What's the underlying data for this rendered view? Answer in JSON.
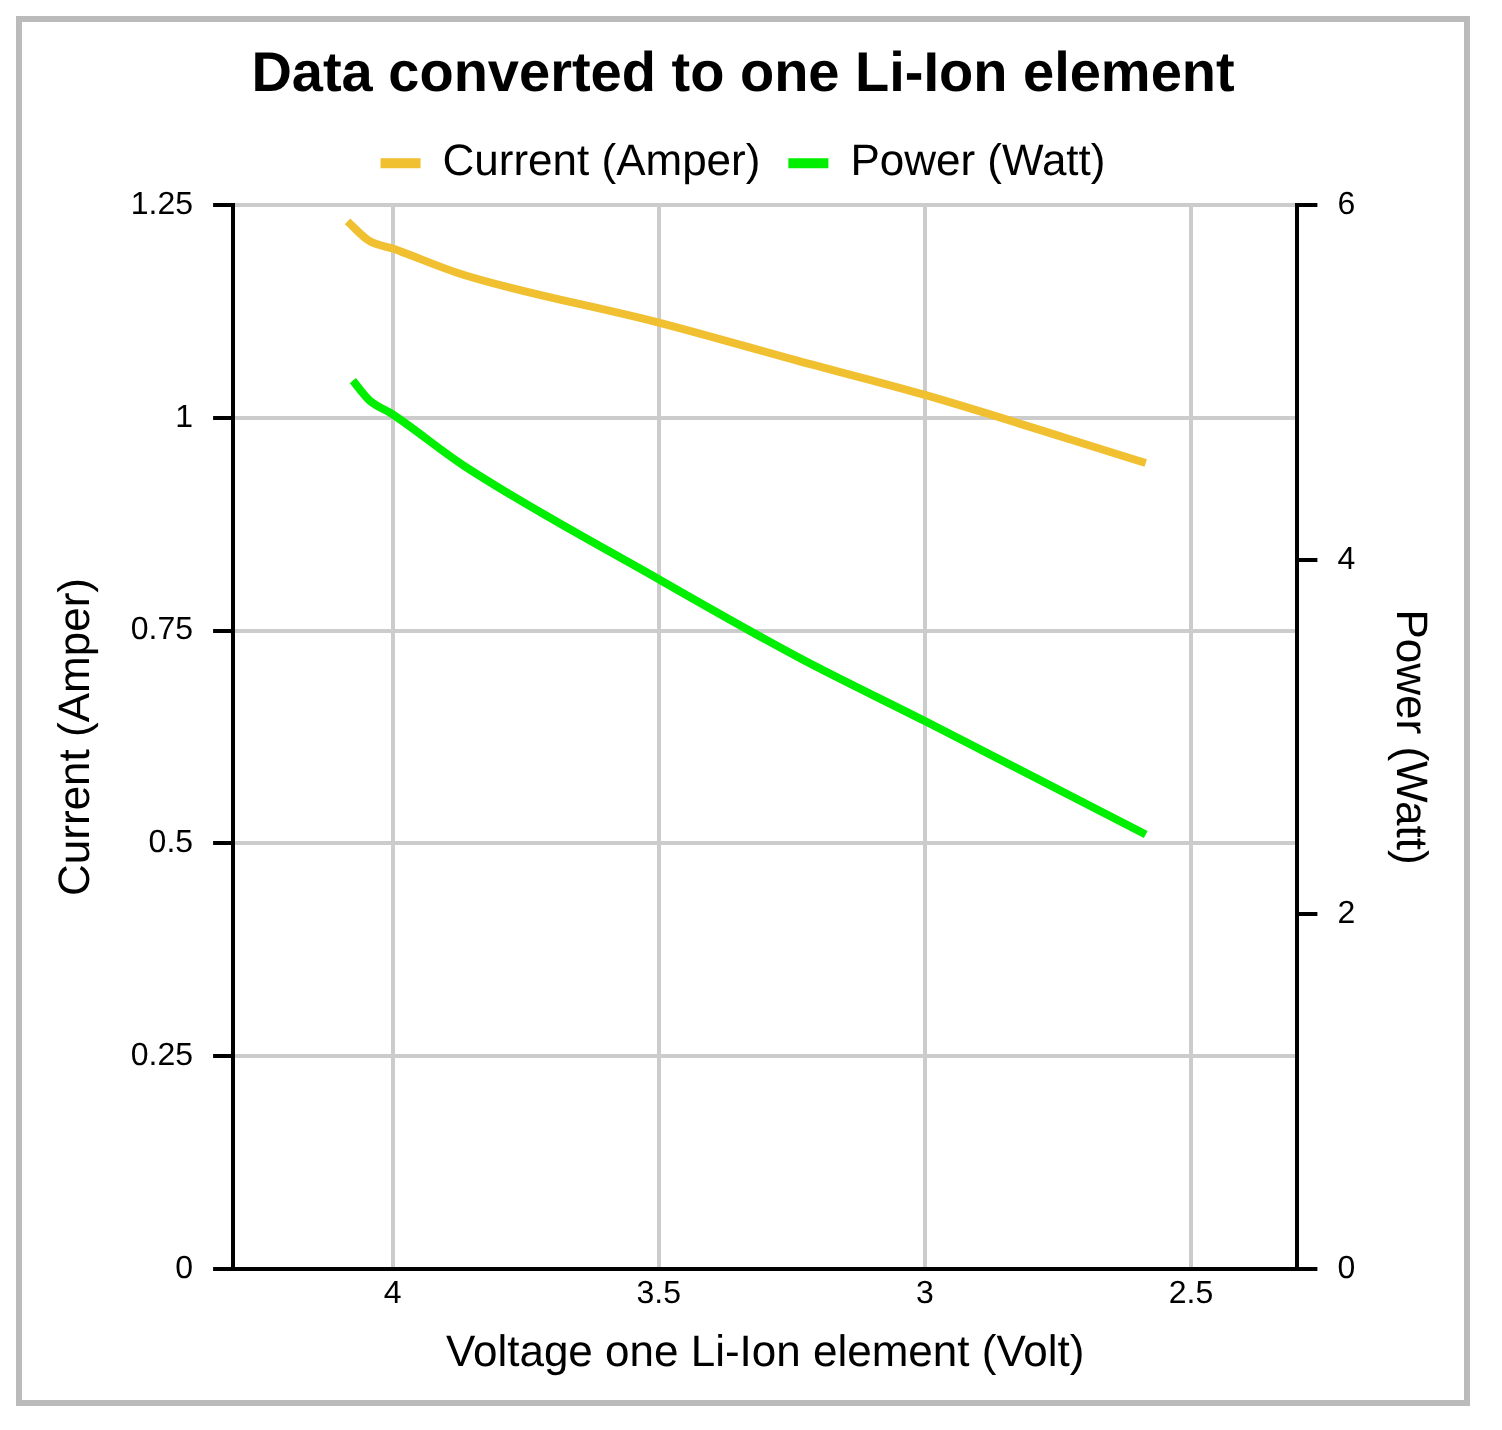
{
  "chart_data": {
    "type": "line",
    "title": "Data converted to one Li-Ion element",
    "xlabel": "Voltage one Li-Ion element (Volt)",
    "ylabel": "Current (Amper)",
    "y2label": "Power (Watt)",
    "xlim": [
      4.3,
      2.3
    ],
    "xticks": [
      4,
      3.5,
      3,
      2.5
    ],
    "ylim": [
      0,
      1.25
    ],
    "yticks": [
      0,
      0.25,
      0.5,
      0.75,
      1,
      1.25
    ],
    "y2lim": [
      0,
      6
    ],
    "y2ticks": [
      0,
      2,
      4,
      6
    ],
    "grid": true,
    "legend": "top",
    "marker": "none",
    "line_style": "solid",
    "series": [
      {
        "name": "Current (Amper)",
        "color": "#f0c030",
        "x": [
          4.085,
          4.044,
          4.0,
          3.866,
          3.5,
          3.238,
          3.0,
          2.585
        ],
        "values": [
          1.231,
          1.208,
          1.199,
          1.168,
          1.112,
          1.067,
          1.027,
          0.947
        ]
      },
      {
        "name": "Power (Watt)",
        "color": "#00ee00",
        "axis": "y2",
        "x": [
          4.075,
          4.044,
          4.0,
          3.866,
          3.5,
          3.238,
          3.0,
          2.585
        ],
        "values": [
          5.01,
          4.9,
          4.82,
          4.53,
          3.89,
          3.45,
          3.09,
          2.45
        ]
      }
    ]
  }
}
